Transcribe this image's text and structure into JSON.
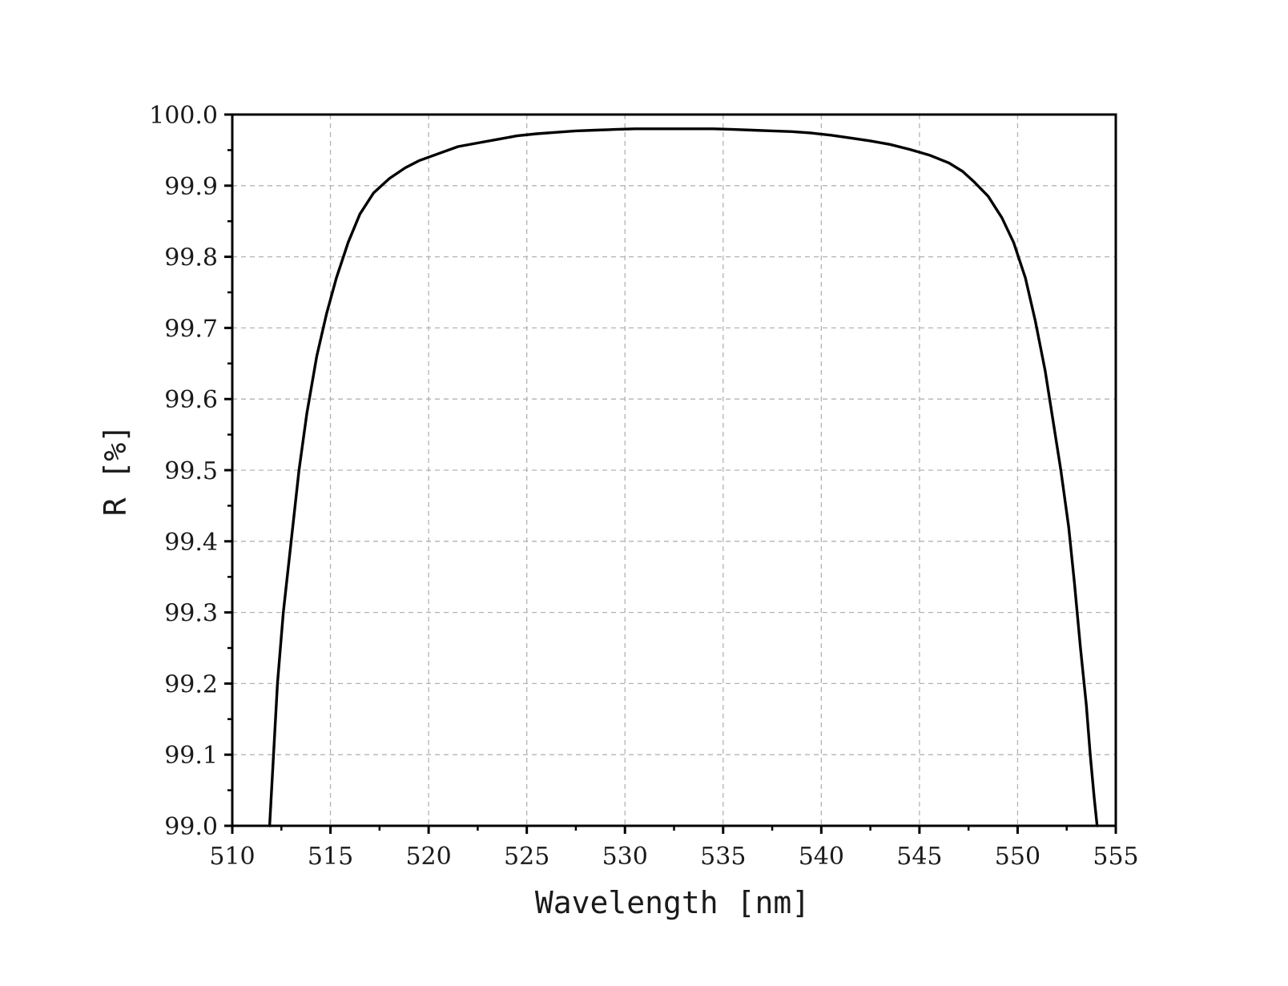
{
  "chart_data": {
    "type": "line",
    "title": "",
    "xlabel": "Wavelength [nm]",
    "ylabel": "R [%]",
    "xlim": [
      510,
      555
    ],
    "ylim": [
      99.0,
      100.0
    ],
    "grid": true,
    "x_major_ticks": [
      510,
      515,
      520,
      525,
      530,
      535,
      540,
      545,
      550,
      555
    ],
    "x_tick_labels": [
      "510",
      "515",
      "520",
      "525",
      "530",
      "535",
      "540",
      "545",
      "550",
      "555"
    ],
    "y_major_ticks": [
      99.0,
      99.1,
      99.2,
      99.3,
      99.4,
      99.5,
      99.6,
      99.7,
      99.8,
      99.9,
      100.0
    ],
    "y_tick_labels": [
      "99.0",
      "99.1",
      "99.2",
      "99.3",
      "99.4",
      "99.5",
      "99.6",
      "99.7",
      "99.8",
      "99.9",
      "100.0"
    ],
    "line_color": "#000000",
    "series": [
      {
        "x": [
          511.9,
          512.1,
          512.3,
          512.6,
          513.0,
          513.4,
          513.8,
          514.3,
          514.8,
          515.3,
          515.9,
          516.5,
          517.2,
          518.0,
          518.8,
          519.5,
          520.5,
          521.5,
          522.5,
          523.5,
          524.5,
          525.5,
          526.5,
          527.5,
          528.5,
          529.5,
          530.5,
          531.5,
          532.5,
          533.5,
          534.5,
          535.5,
          536.5,
          537.5,
          538.5,
          539.5,
          540.5,
          541.5,
          542.5,
          543.5,
          544.5,
          545.5,
          546.5,
          547.2,
          547.8,
          548.5,
          549.2,
          549.8,
          550.4,
          550.9,
          551.4,
          551.8,
          552.2,
          552.6,
          552.9,
          553.2,
          553.5,
          553.7,
          553.9,
          554.05
        ],
        "y": [
          99.0,
          99.1,
          99.2,
          99.3,
          99.4,
          99.5,
          99.58,
          99.66,
          99.72,
          99.77,
          99.82,
          99.86,
          99.89,
          99.91,
          99.925,
          99.935,
          99.945,
          99.955,
          99.96,
          99.965,
          99.97,
          99.973,
          99.975,
          99.977,
          99.978,
          99.979,
          99.98,
          99.98,
          99.98,
          99.98,
          99.98,
          99.979,
          99.978,
          99.977,
          99.976,
          99.974,
          99.971,
          99.967,
          99.963,
          99.958,
          99.951,
          99.943,
          99.932,
          99.92,
          99.905,
          99.885,
          99.855,
          99.82,
          99.77,
          99.71,
          99.64,
          99.57,
          99.5,
          99.42,
          99.34,
          99.25,
          99.17,
          99.1,
          99.04,
          99.0
        ]
      }
    ]
  }
}
